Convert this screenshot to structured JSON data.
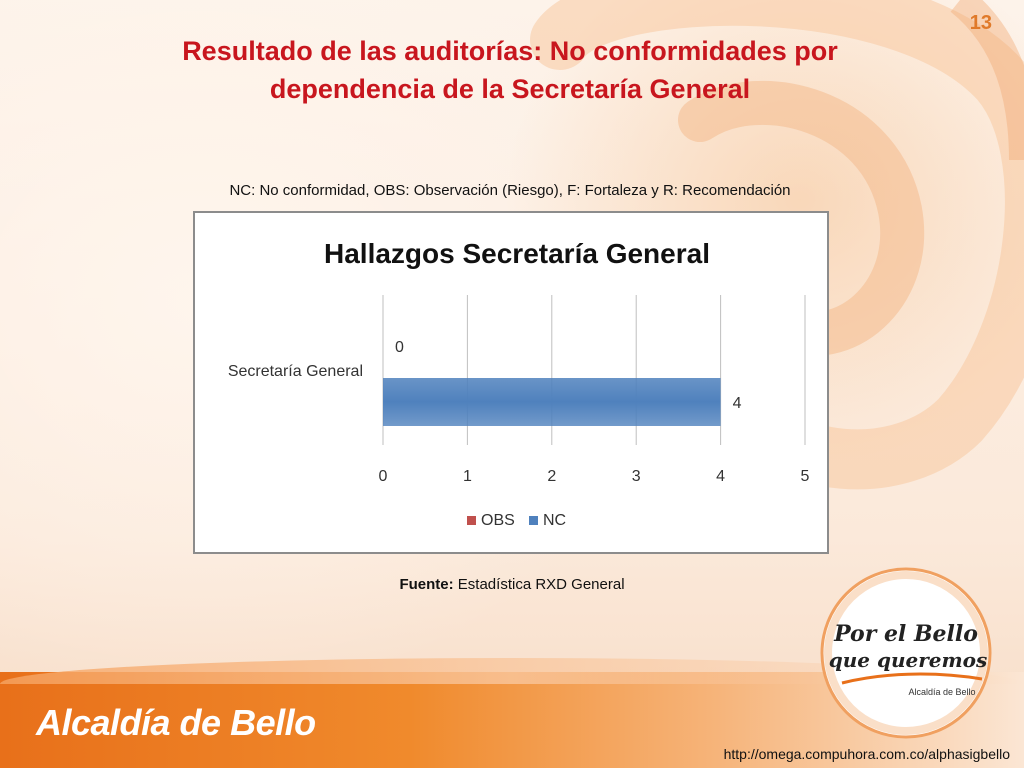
{
  "slide": {
    "page_number": "13",
    "title_line1": "Resultado de las auditorías: No conformidades por",
    "title_line2": "dependencia de la Secretaría General",
    "note": "NC: No conformidad, OBS: Observación (Riesgo), F: Fortaleza y R: Recomendación",
    "source_label": "Fuente:",
    "source_text": " Estadística RXD General",
    "brand": "Alcaldía de Bello",
    "url": "http://omega.compuhora.com.co/alphasigbello",
    "logo_line1": "Por el Bello",
    "logo_line2": "que queremos",
    "logo_line3": "Alcaldía de Bello"
  },
  "colors": {
    "title": "#c8161e",
    "obs": "#c0504d",
    "nc": "#4f81bd",
    "accent": "#e8701a"
  },
  "chart_data": {
    "type": "bar",
    "orientation": "horizontal",
    "title": "Hallazgos  Secretaría General",
    "categories": [
      "Secretaría General"
    ],
    "series": [
      {
        "name": "OBS",
        "values": [
          0
        ]
      },
      {
        "name": "NC",
        "values": [
          4
        ]
      }
    ],
    "xlim": [
      0,
      5
    ],
    "x_ticks": [
      "0",
      "1",
      "2",
      "3",
      "4",
      "5"
    ],
    "grid": true,
    "legend_position": "bottom"
  }
}
